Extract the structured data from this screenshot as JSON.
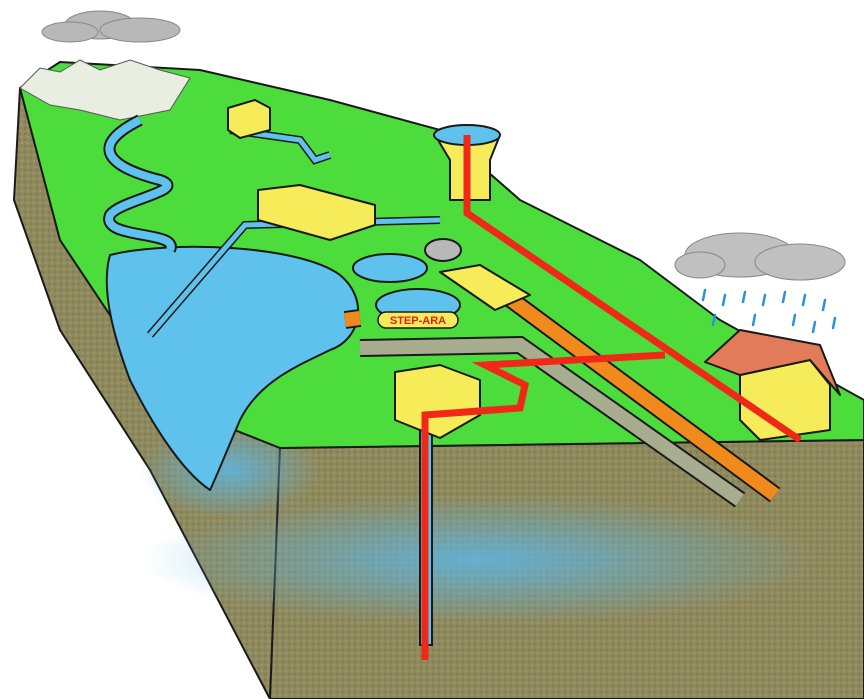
{
  "labels": {
    "plant": "STEP-ARA"
  }
}
